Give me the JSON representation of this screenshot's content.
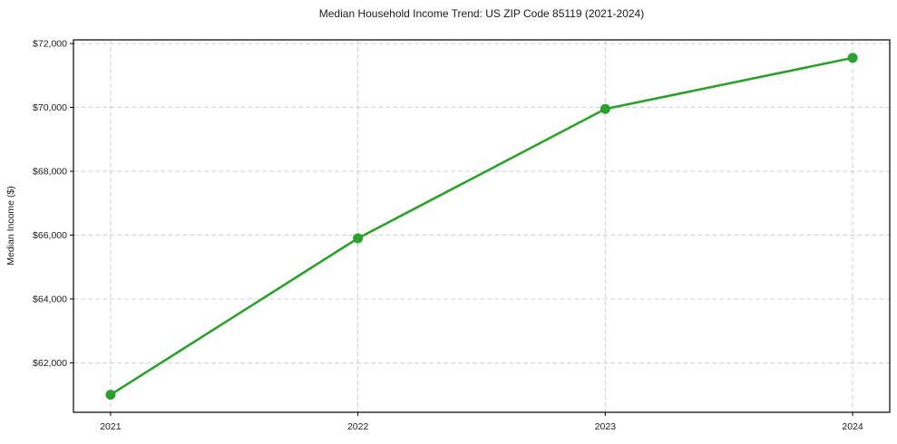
{
  "chart_data": {
    "type": "line",
    "title": "Median Household Income Trend: US ZIP Code 85119 (2021-2024)",
    "xlabel": "",
    "ylabel": "Median Income ($)",
    "x": [
      "2021",
      "2022",
      "2023",
      "2024"
    ],
    "series": [
      {
        "name": "Median Household Income",
        "values": [
          61000,
          65900,
          69950,
          71550
        ]
      }
    ],
    "yticks": [
      62000,
      64000,
      66000,
      68000,
      70000,
      72000
    ],
    "ytick_labels": [
      "$62,000",
      "$64,000",
      "$66,000",
      "$68,000",
      "$70,000",
      "$72,000"
    ],
    "ylim": [
      60450,
      72115
    ],
    "grid": "dashed",
    "grid_on": true,
    "legend_position": "none",
    "line_color": "#2ca02c",
    "marker": "circle",
    "marker_radius": 5.5,
    "grid_color": "#c9c9c9",
    "text_color": "#1a1a1a",
    "background_color": "#ffffff"
  }
}
